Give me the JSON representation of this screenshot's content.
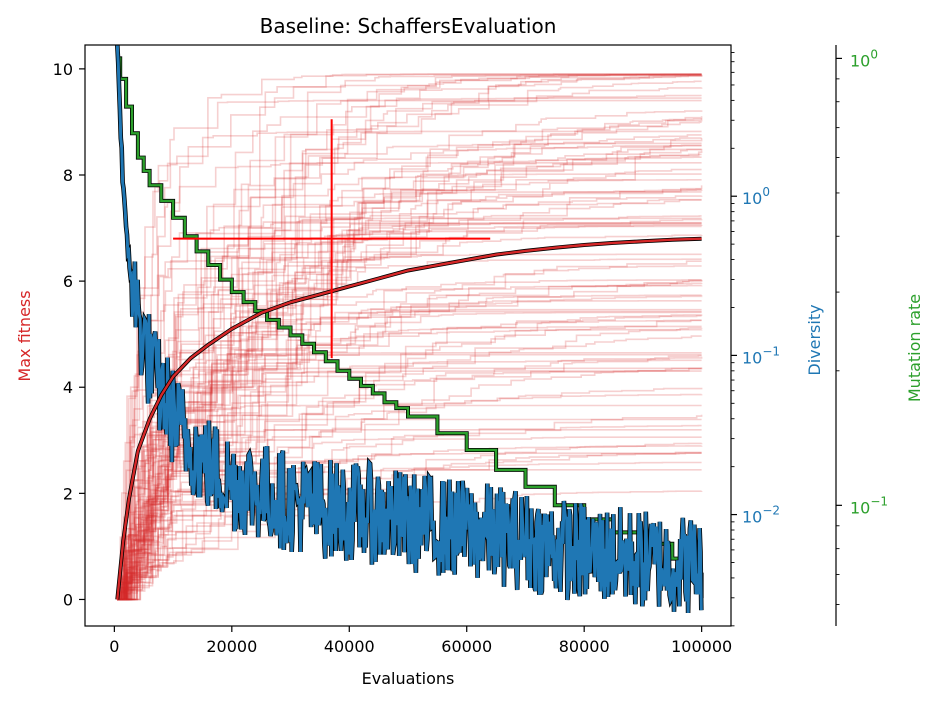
{
  "chart_data": {
    "type": "line",
    "title": "Baseline: SchaffersEvaluation",
    "xlabel": "Evaluations",
    "ylabel": "Max fitness",
    "y2label": "Diversity",
    "y3label": "Mutation rate",
    "xlim": [
      -5000,
      105000
    ],
    "ylim": [
      -0.5,
      10.45
    ],
    "y2lim_log10": [
      -2.7,
      0.95
    ],
    "y3lim_log10": [
      -1.27,
      0.03
    ],
    "xticks": [
      0,
      20000,
      40000,
      60000,
      80000,
      100000
    ],
    "xtick_labels": [
      "0",
      "20000",
      "40000",
      "60000",
      "80000",
      "100000"
    ],
    "yticks": [
      0,
      2,
      4,
      6,
      8,
      10
    ],
    "ytick_labels": [
      "0",
      "2",
      "4",
      "6",
      "8",
      "10"
    ],
    "y2ticks": [
      -2,
      -1,
      0
    ],
    "y2tick_labels": [
      {
        "base": "10",
        "exp": "−2"
      },
      {
        "base": "10",
        "exp": "−1"
      },
      {
        "base": "10",
        "exp": "0"
      }
    ],
    "y3ticks": [
      -1,
      0
    ],
    "y3tick_labels": [
      {
        "base": "10",
        "exp": "−1"
      },
      {
        "base": "10",
        "exp": "0"
      }
    ],
    "colors": {
      "fitness": "#d62728",
      "diversity": "#1f77b4",
      "mutation": "#2ca02c",
      "errorbar": "#ff0000",
      "axis": "#000000"
    },
    "runs_count": 100,
    "mean_fitness": {
      "name": "",
      "x": [
        500,
        1500,
        2500,
        4000,
        6000,
        8000,
        10000,
        13000,
        16000,
        20000,
        25000,
        30000,
        35000,
        40000,
        45000,
        50000,
        55000,
        60000,
        65000,
        70000,
        75000,
        80000,
        85000,
        90000,
        95000,
        100000
      ],
      "y": [
        0,
        1.1,
        1.9,
        2.8,
        3.4,
        3.85,
        4.2,
        4.55,
        4.8,
        5.1,
        5.4,
        5.6,
        5.75,
        5.9,
        6.05,
        6.2,
        6.3,
        6.4,
        6.5,
        6.57,
        6.63,
        6.68,
        6.72,
        6.75,
        6.78,
        6.8
      ]
    },
    "errorbar": {
      "x": 37000,
      "y": 6.8,
      "xerr": 27000,
      "yerr_low": 2.25,
      "yerr_high": 2.25
    },
    "diversity": {
      "name": "",
      "x": [
        500,
        1000,
        1500,
        2000,
        3000,
        4000,
        5000,
        7000,
        9000,
        11000,
        13000,
        15000,
        18000,
        20000,
        25000,
        30000,
        35000,
        40000,
        45000,
        50000,
        55000,
        60000,
        65000,
        70000,
        75000,
        80000,
        85000,
        90000,
        95000,
        100000
      ],
      "y": [
        10,
        3.0,
        1.2,
        0.55,
        0.3,
        0.18,
        0.12,
        0.07,
        0.05,
        0.035,
        0.028,
        0.022,
        0.018,
        0.016,
        0.014,
        0.012,
        0.011,
        0.0105,
        0.01,
        0.009,
        0.0085,
        0.008,
        0.0075,
        0.0068,
        0.0062,
        0.0058,
        0.0055,
        0.0052,
        0.005,
        0.0048
      ]
    },
    "mutation_rate": {
      "name": "",
      "x": [
        500,
        1000,
        2000,
        3000,
        4000,
        5000,
        6000,
        8000,
        10000,
        12000,
        14000,
        16000,
        18000,
        20000,
        22000,
        24000,
        26000,
        28000,
        30000,
        32000,
        34000,
        36000,
        38000,
        40000,
        42000,
        44000,
        46000,
        48000,
        50000,
        55000,
        60000,
        65000,
        70000,
        75000,
        80000,
        85000,
        90000,
        95000,
        98000,
        100000
      ],
      "y": [
        1.0,
        0.9,
        0.78,
        0.68,
        0.6,
        0.56,
        0.52,
        0.48,
        0.44,
        0.4,
        0.37,
        0.345,
        0.32,
        0.3,
        0.285,
        0.272,
        0.26,
        0.25,
        0.24,
        0.23,
        0.22,
        0.21,
        0.2,
        0.192,
        0.185,
        0.178,
        0.17,
        0.165,
        0.158,
        0.145,
        0.133,
        0.12,
        0.11,
        0.1,
        0.093,
        0.087,
        0.082,
        0.076,
        0.07,
        0.062
      ]
    }
  }
}
